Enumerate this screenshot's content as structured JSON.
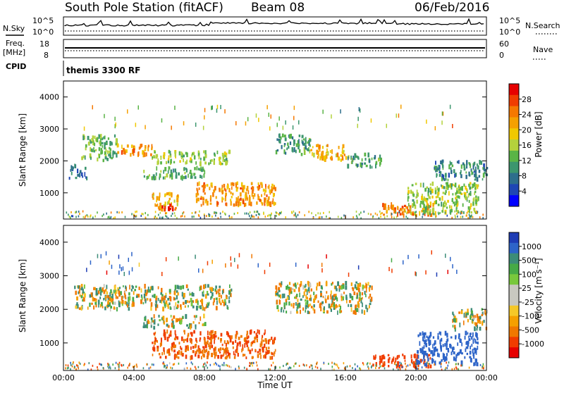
{
  "header": {
    "title": "South Pole Station (fitACF)",
    "beam": "Beam 08",
    "date": "06/Feb/2016"
  },
  "panels": {
    "nsky": {
      "label": "N.Sky",
      "left_ticks": [
        "10^5",
        "10^0"
      ],
      "right_ticks": [
        "10^5",
        "10^0"
      ],
      "right_label": "N.Search"
    },
    "freq": {
      "label_line1": "Freq.",
      "label_line2": "[MHz]",
      "left_ticks": [
        "18",
        "8"
      ],
      "right_ticks": [
        "60",
        "0"
      ],
      "right_label": "Nave"
    },
    "cpid": {
      "label": "CPID",
      "text": "themis 3300 RF"
    }
  },
  "power_panel": {
    "ylabel": "Slant Range [km]",
    "yticks": [
      "4000",
      "3000",
      "2000",
      "1000"
    ],
    "cbar_label": "Power [dB]",
    "cbar_ticks": [
      "28",
      "24",
      "20",
      "16",
      "12",
      "8",
      "4"
    ],
    "cbar_colors": [
      "#e60000",
      "#f03c00",
      "#f57800",
      "#f5a000",
      "#f0c800",
      "#b4d23c",
      "#5ab446",
      "#3c966e",
      "#2d6e8c",
      "#1e46b4",
      "#0000ff"
    ]
  },
  "velocity_panel": {
    "ylabel": "Slant Range [km]",
    "yticks": [
      "4000",
      "3000",
      "2000",
      "1000"
    ],
    "cbar_label": "Velocity [m s⁻¹]",
    "cbar_ticks": [
      "1000",
      "500",
      "100",
      "25",
      "-25",
      "-100",
      "-500",
      "-1000"
    ],
    "cbar_colors": [
      "#1e3cb4",
      "#2d64c8",
      "#3c8c78",
      "#46aa46",
      "#78c83c",
      "#c8c8c0",
      "#c8c8c0",
      "#f5c828",
      "#f5a000",
      "#f07800",
      "#f03c00",
      "#e60000"
    ]
  },
  "time_axis": {
    "label": "Time UT",
    "ticks": [
      "00:00",
      "04:00",
      "08:00",
      "12:00",
      "16:00",
      "20:00",
      "00:00"
    ]
  },
  "chart_data": {
    "type": "heatmap",
    "title": "South Pole Station (fitACF)",
    "subtitle": "Beam 08",
    "date": "06/Feb/2016",
    "xlabel": "Time UT",
    "x_range_hours": [
      0,
      24
    ],
    "ylabel": "Slant Range [km]",
    "ylim": [
      180,
      4500
    ],
    "power_colorbar": {
      "label": "Power [dB]",
      "range": [
        0,
        30
      ]
    },
    "velocity_colorbar": {
      "label": "Velocity [m s⁻¹]",
      "range": [
        -1000,
        1000
      ]
    },
    "power_bands": [
      {
        "t": [
          1.0,
          3.0
        ],
        "r": [
          2000,
          2800
        ],
        "p": 12
      },
      {
        "t": [
          3.0,
          5.0
        ],
        "r": [
          2150,
          2500
        ],
        "p": 22
      },
      {
        "t": [
          5.0,
          9.5
        ],
        "r": [
          1900,
          2300
        ],
        "p": 14
      },
      {
        "t": [
          4.5,
          8.0
        ],
        "r": [
          1450,
          1800
        ],
        "p": 10
      },
      {
        "t": [
          0.3,
          1.3
        ],
        "r": [
          1450,
          1850
        ],
        "p": 6
      },
      {
        "t": [
          5.0,
          6.5
        ],
        "r": [
          450,
          1000
        ],
        "p": 20
      },
      {
        "t": [
          5.5,
          6.3
        ],
        "r": [
          450,
          650
        ],
        "p": 28
      },
      {
        "t": [
          7.5,
          12.0
        ],
        "r": [
          600,
          1300
        ],
        "p": 22
      },
      {
        "t": [
          12.0,
          14.0
        ],
        "r": [
          2200,
          2800
        ],
        "p": 10
      },
      {
        "t": [
          14.0,
          16.0
        ],
        "r": [
          2000,
          2500
        ],
        "p": 20
      },
      {
        "t": [
          16.0,
          18.0
        ],
        "r": [
          1800,
          2200
        ],
        "p": 10
      },
      {
        "t": [
          18.0,
          21.0
        ],
        "r": [
          280,
          650
        ],
        "p": 24
      },
      {
        "t": [
          19.5,
          23.5
        ],
        "r": [
          350,
          1300
        ],
        "p": 14
      },
      {
        "t": [
          21.0,
          24.0
        ],
        "r": [
          1400,
          2000
        ],
        "p": 8
      }
    ],
    "velocity_bands": [
      {
        "t": [
          0.5,
          9.5
        ],
        "r": [
          2000,
          2700
        ],
        "v": 0
      },
      {
        "t": [
          4.5,
          8.0
        ],
        "r": [
          1450,
          1800
        ],
        "v": 0
      },
      {
        "t": [
          5.0,
          12.0
        ],
        "r": [
          550,
          1350
        ],
        "v": -150
      },
      {
        "t": [
          12.0,
          17.5
        ],
        "r": [
          1900,
          2800
        ],
        "v": 0
      },
      {
        "t": [
          17.5,
          21.0
        ],
        "r": [
          280,
          650
        ],
        "v": -250
      },
      {
        "t": [
          20.0,
          23.5
        ],
        "r": [
          350,
          1300
        ],
        "v": 300
      },
      {
        "t": [
          22.0,
          24.0
        ],
        "r": [
          1400,
          2000
        ],
        "v": 0
      }
    ]
  }
}
